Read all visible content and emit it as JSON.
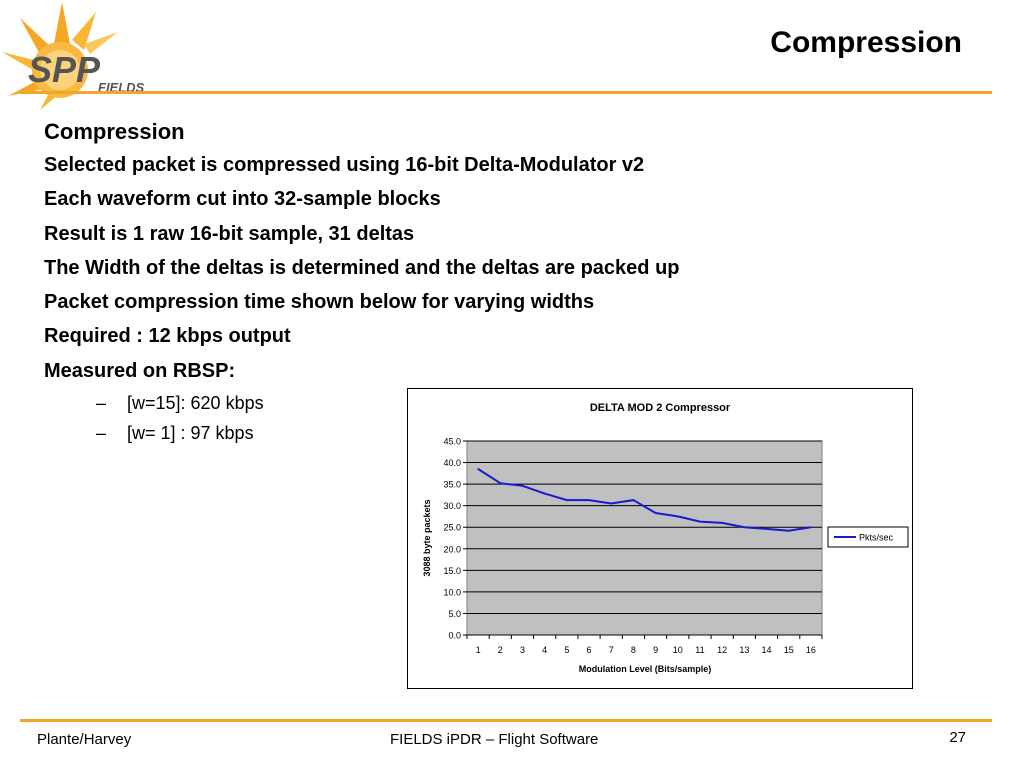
{
  "header": {
    "title": "Compression",
    "logo_text": "SPP FIELDS"
  },
  "content": {
    "heading": "Compression",
    "bullets": [
      "Selected packet is compressed using 16-bit Delta-Modulator v2",
      "Each waveform cut into 32-sample blocks",
      "Result is 1 raw 16-bit sample, 31 deltas",
      "The Width of the deltas is determined and the deltas are packed up",
      "Packet compression time shown below for varying widths",
      "Required : 12 kbps output",
      "Measured on RBSP:"
    ],
    "sub_dash": "–",
    "sub_bullets": [
      "[w=15]: 620 kbps",
      "[w= 1] :  97 kbps"
    ]
  },
  "chart_data": {
    "type": "line",
    "title": "DELTA MOD 2 Compressor",
    "xlabel": "Modulation Level (Bits/sample)",
    "ylabel": "3088 byte packets",
    "categories": [
      "1",
      "2",
      "3",
      "4",
      "5",
      "6",
      "7",
      "8",
      "9",
      "10",
      "11",
      "12",
      "13",
      "14",
      "15",
      "16"
    ],
    "ylim": [
      0,
      45
    ],
    "yticks": [
      "0.0",
      "5.0",
      "10.0",
      "15.0",
      "20.0",
      "25.0",
      "30.0",
      "35.0",
      "40.0",
      "45.0"
    ],
    "series": [
      {
        "name": "Pkts/sec",
        "color": "#1a1acc",
        "values": [
          38.5,
          35.2,
          34.6,
          32.8,
          31.3,
          31.3,
          30.5,
          31.3,
          28.3,
          27.5,
          26.3,
          26.0,
          25.0,
          24.6,
          24.2,
          25.0
        ]
      }
    ],
    "plot_background": "#c0c0c0",
    "grid": true,
    "legend_position": "right"
  },
  "footer": {
    "left": "Plante/Harvey",
    "center": "FIELDS iPDR – Flight Software",
    "page": "27"
  },
  "colors": {
    "rule": "#f2a52a",
    "logo_sun": "#f5a623",
    "logo_text": "#555555"
  }
}
